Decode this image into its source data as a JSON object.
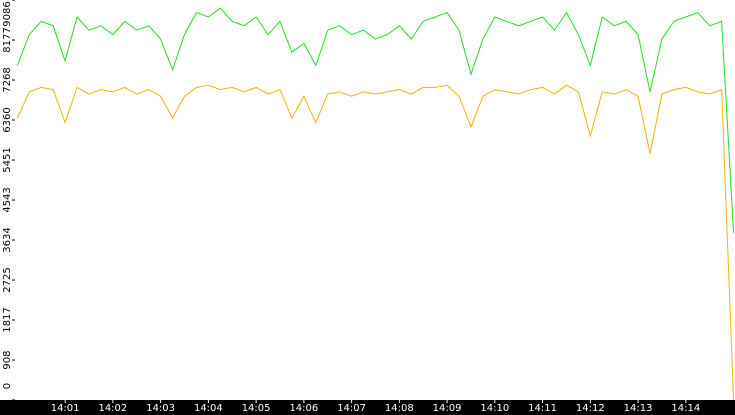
{
  "chart_data": {
    "type": "line",
    "x": [
      0,
      0.25,
      0.5,
      0.75,
      1,
      1.25,
      1.5,
      1.75,
      2,
      2.25,
      2.5,
      2.75,
      3,
      3.25,
      3.5,
      3.75,
      4,
      4.25,
      4.5,
      4.75,
      5,
      5.25,
      5.5,
      5.75,
      6,
      6.25,
      6.5,
      6.75,
      7,
      7.25,
      7.5,
      7.75,
      8,
      8.25,
      8.5,
      8.75,
      9,
      9.25,
      9.5,
      9.75,
      10,
      10.25,
      10.5,
      10.75,
      11,
      11.25,
      11.5,
      11.75,
      12,
      12.25,
      12.5,
      12.75,
      13,
      13.25,
      13.5,
      13.75,
      14,
      14.25,
      14.5,
      14.75,
      15
    ],
    "series": [
      {
        "color": "#22dd22",
        "values": [
          7600,
          8300,
          8600,
          8500,
          7700,
          8700,
          8400,
          8500,
          8300,
          8600,
          8400,
          8500,
          8200,
          7500,
          8300,
          8800,
          8700,
          8900,
          8600,
          8500,
          8700,
          8300,
          8600,
          7900,
          8100,
          7600,
          8400,
          8500,
          8300,
          8400,
          8200,
          8300,
          8500,
          8200,
          8600,
          8700,
          8800,
          8400,
          7400,
          8200,
          8700,
          8600,
          8500,
          8600,
          8700,
          8400,
          8800,
          8300,
          7600,
          8700,
          8500,
          8600,
          8300,
          7000,
          8200,
          8600,
          8700,
          8800,
          8500,
          8600,
          3800
        ]
      },
      {
        "color": "#f0b400",
        "values": [
          6400,
          7000,
          7100,
          7050,
          6300,
          7100,
          6950,
          7050,
          7000,
          7100,
          6950,
          7050,
          6900,
          6400,
          6900,
          7100,
          7150,
          7050,
          7100,
          7000,
          7100,
          6950,
          7050,
          6400,
          6900,
          6300,
          6950,
          7000,
          6900,
          7000,
          6950,
          7000,
          7050,
          6950,
          7100,
          7100,
          7150,
          6900,
          6200,
          6900,
          7050,
          7000,
          6950,
          7050,
          7100,
          6950,
          7150,
          7000,
          6000,
          7000,
          6950,
          7050,
          6900,
          5600,
          6950,
          7050,
          7100,
          7000,
          6950,
          7050,
          0
        ]
      }
    ],
    "xlim": [
      -0.05,
      15.03
    ],
    "xticks": [
      {
        "value": 1,
        "label": "14:01"
      },
      {
        "value": 2,
        "label": "14:02"
      },
      {
        "value": 3,
        "label": "14:03"
      },
      {
        "value": 4,
        "label": "14:04"
      },
      {
        "value": 5,
        "label": "14:05"
      },
      {
        "value": 6,
        "label": "14:06"
      },
      {
        "value": 7,
        "label": "14:07"
      },
      {
        "value": 8,
        "label": "14:08"
      },
      {
        "value": 9,
        "label": "14:09"
      },
      {
        "value": 10,
        "label": "14:10"
      },
      {
        "value": 11,
        "label": "14:11"
      },
      {
        "value": 12,
        "label": "14:12"
      },
      {
        "value": 13,
        "label": "14:13"
      },
      {
        "value": 14,
        "label": "14:14"
      }
    ],
    "ylim": [
      0,
      9086
    ],
    "yticks": [
      0,
      908,
      1817,
      2725,
      3634,
      4543,
      5451,
      6360,
      7268,
      8177,
      9086
    ]
  }
}
